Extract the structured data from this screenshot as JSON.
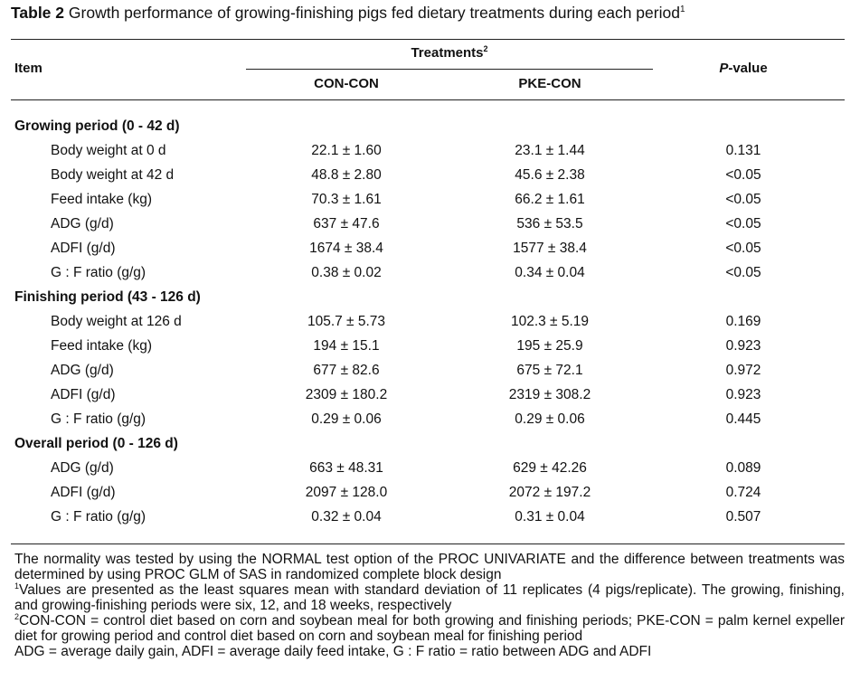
{
  "caption": {
    "label": "Table 2",
    "title": "Growth performance of growing-finishing pigs fed dietary treatments during each period",
    "footnote_ref": "1"
  },
  "header": {
    "item": "Item",
    "treatments": "Treatments",
    "treatments_ref": "2",
    "col1": "CON-CON",
    "col2": "PKE-CON",
    "pvalue_italic": "P",
    "pvalue_rest": "-value"
  },
  "sections": [
    {
      "title": "Growing period (0 - 42 d)",
      "rows": [
        {
          "item": "Body weight at 0 d",
          "con": "22.1 ± 1.60",
          "pke": "23.1 ± 1.44",
          "p": "0.131"
        },
        {
          "item": "Body weight at 42 d",
          "con": "48.8 ± 2.80",
          "pke": "45.6 ± 2.38",
          "p": "<0.05"
        },
        {
          "item": "Feed intake (kg)",
          "con": "70.3 ± 1.61",
          "pke": "66.2 ± 1.61",
          "p": "<0.05"
        },
        {
          "item": "ADG (g/d)",
          "con": "637 ± 47.6",
          "pke": "536 ± 53.5",
          "p": "<0.05"
        },
        {
          "item": "ADFI (g/d)",
          "con": "1674 ± 38.4",
          "pke": "1577 ± 38.4",
          "p": "<0.05"
        },
        {
          "item": "G : F ratio (g/g)",
          "con": "0.38 ± 0.02",
          "pke": "0.34 ± 0.04",
          "p": "<0.05"
        }
      ]
    },
    {
      "title": "Finishing period (43 - 126 d)",
      "rows": [
        {
          "item": "Body weight at 126 d",
          "con": "105.7 ± 5.73",
          "pke": "102.3 ± 5.19",
          "p": "0.169"
        },
        {
          "item": "Feed intake (kg)",
          "con": "194 ± 15.1",
          "pke": "195 ± 25.9",
          "p": "0.923"
        },
        {
          "item": "ADG (g/d)",
          "con": "677 ± 82.6",
          "pke": "675 ± 72.1",
          "p": "0.972"
        },
        {
          "item": "ADFI (g/d)",
          "con": "2309 ± 180.2",
          "pke": "2319 ± 308.2",
          "p": "0.923"
        },
        {
          "item": "G : F ratio (g/g)",
          "con": "0.29 ± 0.06",
          "pke": "0.29 ± 0.06",
          "p": "0.445"
        }
      ]
    },
    {
      "title": "Overall period (0 - 126 d)",
      "rows": [
        {
          "item": "ADG (g/d)",
          "con": "663 ± 48.31",
          "pke": "629 ± 42.26",
          "p": "0.089"
        },
        {
          "item": "ADFI (g/d)",
          "con": "2097 ± 128.0",
          "pke": "2072 ± 197.2",
          "p": "0.724"
        },
        {
          "item": "G : F ratio (g/g)",
          "con": "0.32 ± 0.04",
          "pke": "0.31 ± 0.04",
          "p": "0.507"
        }
      ]
    }
  ],
  "notes": {
    "general": "The normality was tested by using the NORMAL test option of the PROC UNIVARIATE and the difference between treatments was determined by using PROC GLM of SAS in randomized complete block design",
    "fn1_mark": "1",
    "fn1": "Values are presented as the least squares mean with standard deviation of 11 replicates (4 pigs/replicate). The growing, finishing, and growing-finishing periods were six, 12, and 18 weeks, respectively",
    "fn2_mark": "2",
    "fn2": "CON-CON = control diet based on corn and soybean meal for both growing and finishing periods; PKE-CON = palm kernel expeller diet for growing period and control diet based on corn and soybean meal for finishing period",
    "abbrev": "ADG = average daily gain, ADFI = average daily feed intake, G : F ratio = ratio between ADG and ADFI"
  }
}
